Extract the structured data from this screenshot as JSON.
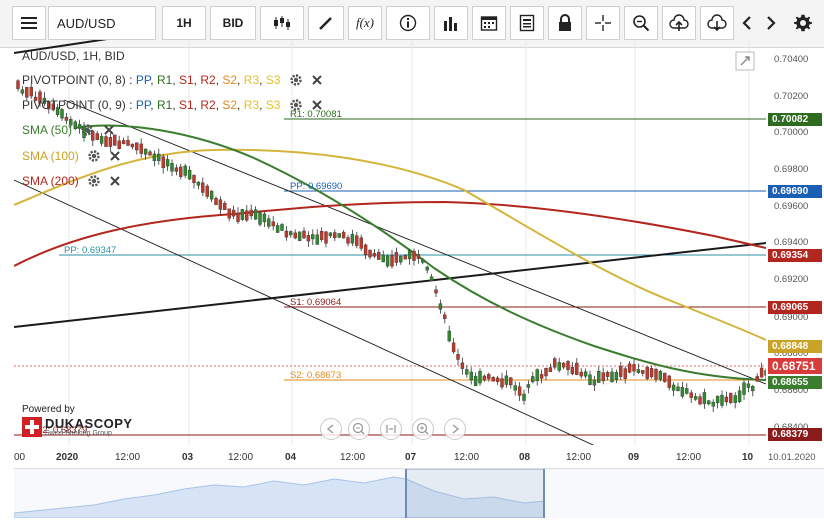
{
  "toolbar": {
    "symbol": "AUD/USD",
    "period": "1H",
    "price_side": "BID",
    "fx_label": "f(x)"
  },
  "chart": {
    "title": "AUD/USD, 1H, BID",
    "indicators": [
      {
        "name": "PIVOTPOINT (0, 8)",
        "parts": [
          "PP",
          "R1",
          "S1",
          "R2",
          "S2",
          "R3",
          "S3"
        ]
      },
      {
        "name": "PIVOTPOINT (0, 9)",
        "parts": [
          "PP",
          "R1",
          "S1",
          "R2",
          "S2",
          "R3",
          "S3"
        ]
      },
      {
        "name": "SMA (50)"
      },
      {
        "name": "SMA (100)"
      },
      {
        "name": "SMA (200)"
      }
    ],
    "level_labels": {
      "r1": "R1: 0.70081",
      "pp_top": "PP: 0.69690",
      "pp_mid": "PP: 0.69347",
      "s1": "S1: 0.69064",
      "s2": "S2: 0.68673",
      "s2b": "S2: 0.68379"
    },
    "price_axis": [
      "0.70400",
      "0.70200",
      "0.70000",
      "0.69800",
      "0.69600",
      "0.69400",
      "0.69200",
      "0.69000",
      "0.68800",
      "0.68600",
      "0.68400"
    ],
    "price_tags": [
      {
        "label": "0.70082",
        "color": "#2e6b1f"
      },
      {
        "label": "0.69690",
        "color": "#1a5fb4"
      },
      {
        "label": "0.69354",
        "color": "#b3261e"
      },
      {
        "label": "0.69065",
        "color": "#b3261e"
      },
      {
        "label": "0.68848",
        "color": "#c9a227"
      },
      {
        "label": "0.68751",
        "color": "#d93a3a"
      },
      {
        "label": "0.68655",
        "color": "#3a7d2e"
      },
      {
        "label": "0.68379",
        "color": "#8b1a1a"
      }
    ],
    "time_axis": [
      "00",
      "2020",
      "12:00",
      "03",
      "12:00",
      "04",
      "12:00",
      "07",
      "12:00",
      "08",
      "12:00",
      "09",
      "12:00",
      "10"
    ],
    "date_stamp": "10.01.2020",
    "powered_by": "Powered by",
    "brand": "DUKASCOPY",
    "brand_sub": "Swiss Banking Group"
  }
}
